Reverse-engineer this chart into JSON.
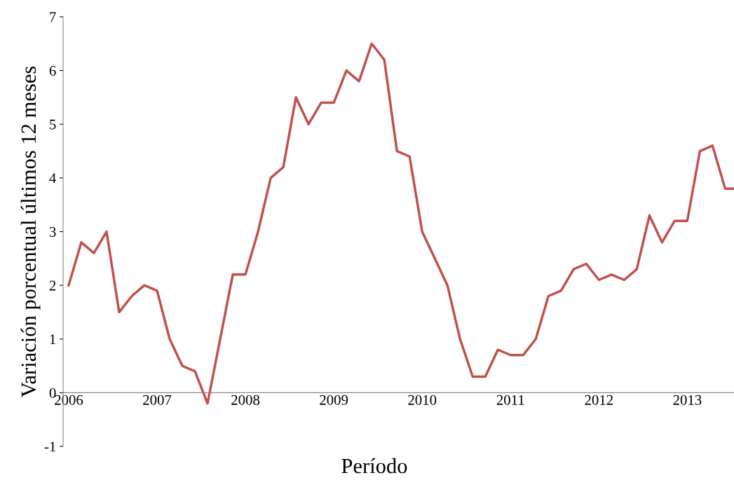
{
  "chart_data": {
    "type": "line",
    "xlabel": "Período",
    "ylabel": "Variación porcentual últimos 12 meses",
    "categories": [
      "2006",
      null,
      null,
      null,
      null,
      null,
      null,
      "2007",
      null,
      null,
      null,
      null,
      null,
      null,
      "2008",
      null,
      null,
      null,
      null,
      null,
      null,
      "2009",
      null,
      null,
      null,
      null,
      null,
      null,
      "2010",
      null,
      null,
      null,
      null,
      null,
      null,
      "2011",
      null,
      null,
      null,
      null,
      null,
      null,
      "2012",
      null,
      null,
      null,
      null,
      null,
      null,
      "2013",
      null,
      null,
      null,
      null
    ],
    "series": [
      {
        "color": "#c0504d",
        "values": [
          2.0,
          2.8,
          2.6,
          3.0,
          1.5,
          1.8,
          2.0,
          1.9,
          1.0,
          0.5,
          0.4,
          -0.2,
          1.0,
          2.2,
          2.2,
          3.0,
          4.0,
          4.2,
          5.5,
          5.0,
          5.4,
          5.4,
          6.0,
          5.8,
          6.5,
          6.2,
          4.5,
          4.4,
          3.0,
          2.5,
          2.0,
          1.0,
          0.3,
          0.3,
          0.8,
          0.7,
          0.7,
          1.0,
          1.8,
          1.9,
          2.3,
          2.4,
          2.1,
          2.2,
          2.1,
          2.3,
          3.3,
          2.8,
          3.2,
          3.2,
          4.5,
          4.6,
          3.8,
          3.8
        ]
      }
    ],
    "ylim": [
      -1,
      7
    ],
    "yticks": [
      -1,
      0,
      1,
      2,
      3,
      4,
      5,
      6,
      7
    ],
    "marker": "none",
    "line_style": "solid"
  }
}
